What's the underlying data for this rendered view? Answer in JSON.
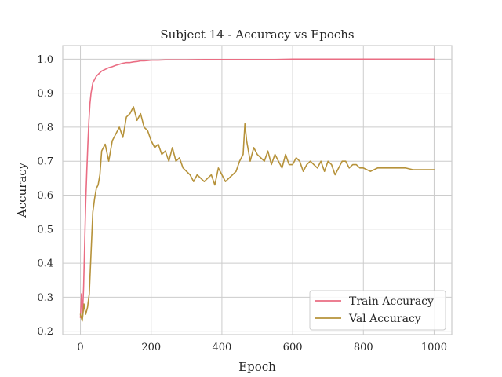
{
  "chart_data": {
    "type": "line",
    "title": "Subject 14 - Accuracy vs Epochs",
    "xlabel": "Epoch",
    "ylabel": "Accuracy",
    "xlim": [
      -50,
      1050
    ],
    "ylim": [
      0.19,
      1.04
    ],
    "x_ticks": [
      0,
      200,
      400,
      600,
      800,
      1000
    ],
    "y_ticks": [
      0.2,
      0.3,
      0.4,
      0.5,
      0.6,
      0.7,
      0.8,
      0.9,
      1.0
    ],
    "grid": true,
    "legend_position": "lower-right",
    "series": [
      {
        "name": "Train Accuracy",
        "color": "#ea6d83",
        "x": [
          0,
          3,
          6,
          9,
          12,
          15,
          18,
          21,
          24,
          27,
          30,
          35,
          40,
          45,
          50,
          55,
          60,
          70,
          80,
          90,
          100,
          110,
          120,
          130,
          140,
          150,
          160,
          170,
          180,
          190,
          200,
          220,
          240,
          260,
          280,
          300,
          350,
          400,
          450,
          500,
          550,
          600,
          650,
          700,
          750,
          800,
          850,
          900,
          950,
          1000
        ],
        "y": [
          0.24,
          0.31,
          0.25,
          0.33,
          0.46,
          0.58,
          0.67,
          0.75,
          0.82,
          0.87,
          0.9,
          0.93,
          0.94,
          0.95,
          0.955,
          0.96,
          0.965,
          0.97,
          0.975,
          0.978,
          0.982,
          0.985,
          0.988,
          0.99,
          0.99,
          0.992,
          0.993,
          0.995,
          0.995,
          0.996,
          0.997,
          0.997,
          0.998,
          0.998,
          0.998,
          0.998,
          0.999,
          0.999,
          0.999,
          0.999,
          0.999,
          1.0,
          1.0,
          1.0,
          1.0,
          1.0,
          1.0,
          1.0,
          1.0,
          1.0
        ]
      },
      {
        "name": "Val Accuracy",
        "color": "#b6923a",
        "x": [
          0,
          5,
          10,
          15,
          20,
          25,
          30,
          35,
          40,
          45,
          50,
          55,
          60,
          70,
          80,
          90,
          100,
          110,
          120,
          130,
          140,
          150,
          160,
          170,
          180,
          190,
          200,
          210,
          220,
          230,
          240,
          250,
          260,
          270,
          280,
          290,
          300,
          310,
          320,
          330,
          340,
          350,
          360,
          370,
          380,
          390,
          400,
          410,
          420,
          430,
          440,
          450,
          460,
          465,
          470,
          475,
          480,
          490,
          500,
          510,
          520,
          530,
          540,
          550,
          560,
          570,
          580,
          590,
          600,
          610,
          620,
          630,
          640,
          650,
          660,
          670,
          680,
          690,
          700,
          710,
          720,
          730,
          740,
          750,
          760,
          770,
          780,
          790,
          800,
          820,
          840,
          860,
          880,
          900,
          920,
          940,
          960,
          980,
          1000
        ],
        "y": [
          0.25,
          0.23,
          0.28,
          0.25,
          0.27,
          0.31,
          0.43,
          0.55,
          0.59,
          0.62,
          0.63,
          0.66,
          0.73,
          0.75,
          0.7,
          0.76,
          0.78,
          0.8,
          0.77,
          0.83,
          0.84,
          0.86,
          0.82,
          0.84,
          0.8,
          0.79,
          0.76,
          0.74,
          0.75,
          0.72,
          0.73,
          0.7,
          0.74,
          0.7,
          0.71,
          0.68,
          0.67,
          0.66,
          0.64,
          0.66,
          0.65,
          0.64,
          0.65,
          0.66,
          0.63,
          0.68,
          0.66,
          0.64,
          0.65,
          0.66,
          0.67,
          0.7,
          0.72,
          0.81,
          0.76,
          0.73,
          0.7,
          0.74,
          0.72,
          0.71,
          0.7,
          0.73,
          0.69,
          0.72,
          0.7,
          0.68,
          0.72,
          0.69,
          0.69,
          0.71,
          0.7,
          0.67,
          0.69,
          0.7,
          0.69,
          0.68,
          0.7,
          0.67,
          0.7,
          0.69,
          0.66,
          0.68,
          0.7,
          0.7,
          0.68,
          0.69,
          0.69,
          0.68,
          0.68,
          0.67,
          0.68,
          0.68,
          0.68,
          0.68,
          0.68,
          0.675,
          0.675,
          0.675,
          0.675
        ]
      }
    ]
  }
}
